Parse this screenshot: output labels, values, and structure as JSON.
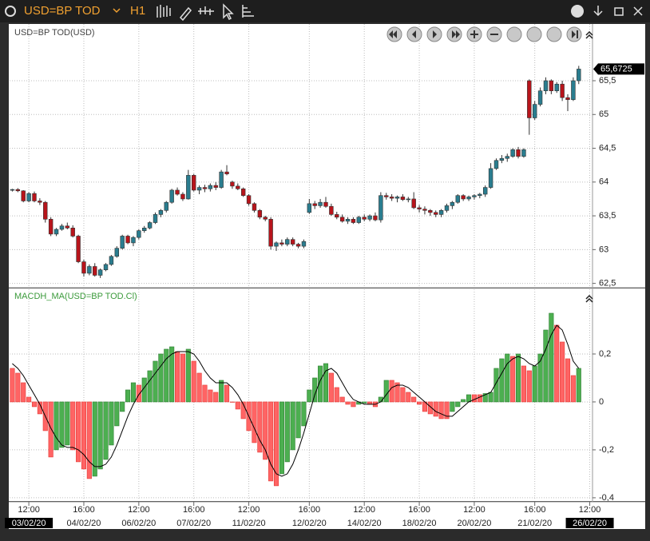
{
  "toolbar": {
    "symbol": "USD=BP TOD",
    "timeframe": "H1"
  },
  "chart_data": [
    {
      "type": "candlestick",
      "title": "USD=BP TOD(USD)",
      "ylim": [
        62.46,
        66.34
      ],
      "yticks": [
        {
          "value": 62.5,
          "label": "62,5"
        },
        63,
        {
          "value": 63.5,
          "label": "63,5"
        },
        64,
        {
          "value": 64.5,
          "label": "64,5"
        },
        65,
        {
          "value": 65.5,
          "label": "65,5"
        }
      ],
      "grid": true,
      "up_color": "#2a7d8f",
      "down_color": "#b8141b",
      "last_price": {
        "value": 65.6725,
        "label": "65,6725"
      },
      "ohlc": [
        [
          63.88,
          63.9,
          63.86,
          63.89
        ],
        [
          63.89,
          63.91,
          63.85,
          63.87
        ],
        [
          63.87,
          63.88,
          63.7,
          63.72
        ],
        [
          63.72,
          63.85,
          63.7,
          63.83
        ],
        [
          63.83,
          63.86,
          63.7,
          63.72
        ],
        [
          63.72,
          63.76,
          63.66,
          63.7
        ],
        [
          63.7,
          63.72,
          63.4,
          63.45
        ],
        [
          63.45,
          63.48,
          63.2,
          63.23
        ],
        [
          63.23,
          63.32,
          63.2,
          63.3
        ],
        [
          63.3,
          63.38,
          63.28,
          63.35
        ],
        [
          63.35,
          63.4,
          63.3,
          63.32
        ],
        [
          63.32,
          63.36,
          63.18,
          63.2
        ],
        [
          63.2,
          63.22,
          62.8,
          62.82
        ],
        [
          62.82,
          62.85,
          62.6,
          62.65
        ],
        [
          62.65,
          62.78,
          62.62,
          62.75
        ],
        [
          62.75,
          62.8,
          62.6,
          62.62
        ],
        [
          62.62,
          62.72,
          62.58,
          62.7
        ],
        [
          62.7,
          62.8,
          62.68,
          62.78
        ],
        [
          62.78,
          62.92,
          62.76,
          62.9
        ],
        [
          62.9,
          63.05,
          62.88,
          63.02
        ],
        [
          63.02,
          63.22,
          63.0,
          63.2
        ],
        [
          63.2,
          63.22,
          63.08,
          63.1
        ],
        [
          63.1,
          63.2,
          63.05,
          63.18
        ],
        [
          63.18,
          63.3,
          63.15,
          63.28
        ],
        [
          63.28,
          63.35,
          63.25,
          63.32
        ],
        [
          63.32,
          63.42,
          63.3,
          63.4
        ],
        [
          63.4,
          63.55,
          63.38,
          63.52
        ],
        [
          63.52,
          63.6,
          63.48,
          63.58
        ],
        [
          63.58,
          63.72,
          63.55,
          63.7
        ],
        [
          63.7,
          63.9,
          63.68,
          63.88
        ],
        [
          63.88,
          63.92,
          63.8,
          63.82
        ],
        [
          63.82,
          63.85,
          63.72,
          63.75
        ],
        [
          63.75,
          64.18,
          63.74,
          64.1
        ],
        [
          64.1,
          64.12,
          63.86,
          63.88
        ],
        [
          63.88,
          63.95,
          63.82,
          63.92
        ],
        [
          63.92,
          63.96,
          63.85,
          63.9
        ],
        [
          63.9,
          63.98,
          63.86,
          63.95
        ],
        [
          63.95,
          64.0,
          63.88,
          63.92
        ],
        [
          63.92,
          64.18,
          63.9,
          64.15
        ],
        [
          64.15,
          64.25,
          64.1,
          64.12
        ],
        [
          64.0,
          64.02,
          63.9,
          63.94
        ],
        [
          63.94,
          63.98,
          63.88,
          63.9
        ],
        [
          63.9,
          63.92,
          63.78,
          63.8
        ],
        [
          63.8,
          63.82,
          63.65,
          63.68
        ],
        [
          63.68,
          63.7,
          63.55,
          63.58
        ],
        [
          63.58,
          63.6,
          63.45,
          63.48
        ],
        [
          63.48,
          63.5,
          63.42,
          63.45
        ],
        [
          63.45,
          63.48,
          63.0,
          63.05
        ],
        [
          63.05,
          63.12,
          62.98,
          63.1
        ],
        [
          63.1,
          63.15,
          63.05,
          63.08
        ],
        [
          63.08,
          63.18,
          63.05,
          63.15
        ],
        [
          63.15,
          63.18,
          63.05,
          63.08
        ],
        [
          63.08,
          63.1,
          63.02,
          63.05
        ],
        [
          63.05,
          63.15,
          63.02,
          63.12
        ],
        [
          63.55,
          63.75,
          63.53,
          63.68
        ],
        [
          63.68,
          63.72,
          63.6,
          63.65
        ],
        [
          63.65,
          63.75,
          63.62,
          63.7
        ],
        [
          63.7,
          63.78,
          63.62,
          63.64
        ],
        [
          63.64,
          63.68,
          63.5,
          63.52
        ],
        [
          63.52,
          63.56,
          63.45,
          63.48
        ],
        [
          63.48,
          63.52,
          63.4,
          63.42
        ],
        [
          63.42,
          63.48,
          63.38,
          63.45
        ],
        [
          63.45,
          63.48,
          63.38,
          63.4
        ],
        [
          63.4,
          63.5,
          63.38,
          63.48
        ],
        [
          63.48,
          63.52,
          63.42,
          63.45
        ],
        [
          63.45,
          63.52,
          63.42,
          63.5
        ],
        [
          63.5,
          63.55,
          63.42,
          63.44
        ],
        [
          63.44,
          63.85,
          63.4,
          63.8
        ],
        [
          63.8,
          63.84,
          63.74,
          63.78
        ],
        [
          63.78,
          63.82,
          63.72,
          63.76
        ],
        [
          63.76,
          63.8,
          63.7,
          63.78
        ],
        [
          63.78,
          63.82,
          63.72,
          63.74
        ],
        [
          63.74,
          63.78,
          63.7,
          63.75
        ],
        [
          63.75,
          63.85,
          63.6,
          63.62
        ],
        [
          63.62,
          63.66,
          63.55,
          63.6
        ],
        [
          63.6,
          63.64,
          63.52,
          63.58
        ],
        [
          63.58,
          63.6,
          63.5,
          63.55
        ],
        [
          63.55,
          63.58,
          63.48,
          63.52
        ],
        [
          63.52,
          63.6,
          63.48,
          63.58
        ],
        [
          63.58,
          63.68,
          63.55,
          63.65
        ],
        [
          63.65,
          63.72,
          63.6,
          63.7
        ],
        [
          63.7,
          63.82,
          63.68,
          63.8
        ],
        [
          63.8,
          63.82,
          63.72,
          63.75
        ],
        [
          63.75,
          63.8,
          63.72,
          63.78
        ],
        [
          63.78,
          63.82,
          63.74,
          63.8
        ],
        [
          63.8,
          63.84,
          63.76,
          63.82
        ],
        [
          63.82,
          63.95,
          63.78,
          63.92
        ],
        [
          63.92,
          64.28,
          63.9,
          64.2
        ],
        [
          64.2,
          64.35,
          64.18,
          64.32
        ],
        [
          64.32,
          64.4,
          64.28,
          64.35
        ],
        [
          64.35,
          64.42,
          64.3,
          64.38
        ],
        [
          64.38,
          64.5,
          64.36,
          64.48
        ],
        [
          64.48,
          64.52,
          64.35,
          64.38
        ],
        [
          64.38,
          64.5,
          64.36,
          64.48
        ],
        [
          65.5,
          65.52,
          64.7,
          64.95
        ],
        [
          64.95,
          65.2,
          64.92,
          65.15
        ],
        [
          65.15,
          65.4,
          65.12,
          65.35
        ],
        [
          65.35,
          65.55,
          65.3,
          65.5
        ],
        [
          65.5,
          65.52,
          65.3,
          65.35
        ],
        [
          65.35,
          65.48,
          65.32,
          65.45
        ],
        [
          65.45,
          65.5,
          65.2,
          65.25
        ],
        [
          65.25,
          65.3,
          65.05,
          65.22
        ],
        [
          65.22,
          65.55,
          65.2,
          65.5
        ],
        [
          65.5,
          65.72,
          65.45,
          65.6725
        ],
        null,
        null
      ]
    },
    {
      "type": "histogram-signal",
      "title": "MACDH_MA(USD=BP TOD.Cl)",
      "ylim": [
        -0.407,
        0.47
      ],
      "yticks": [
        {
          "value": 0.2,
          "label": "0,2"
        },
        0,
        {
          "value": -0.2,
          "label": "-0,2"
        },
        {
          "value": -0.4,
          "label": "-0,4"
        }
      ],
      "grid": true,
      "up_color": "#4caf50",
      "down_color": "#ff6464",
      "signal_color": "#000000",
      "categories": [
        null,
        null,
        null,
        "12:00",
        null,
        null,
        null,
        null,
        null,
        null,
        null,
        null,
        null,
        "16:00",
        null,
        null,
        null,
        null,
        null,
        null,
        null,
        null,
        null,
        "12:00",
        null,
        null,
        null,
        null,
        null,
        null,
        null,
        null,
        null,
        "16:00",
        null,
        null,
        null,
        null,
        null,
        null,
        null,
        null,
        null,
        "12:00",
        null,
        null,
        null,
        null,
        null,
        null,
        null,
        null,
        null,
        null,
        "16:00",
        null,
        null,
        null,
        null,
        null,
        null,
        null,
        null,
        null,
        "12:00",
        null,
        null,
        null,
        null,
        null,
        null,
        null,
        null,
        null,
        "16:00",
        null,
        null,
        null,
        null,
        null,
        null,
        null,
        null,
        null,
        "12:00",
        null,
        null,
        null,
        null,
        null,
        null,
        null,
        null,
        null,
        null,
        "16:00",
        null,
        null,
        null,
        null,
        null,
        null,
        null,
        null,
        null,
        "12:00"
      ],
      "dates": [
        null,
        null,
        null,
        "03/02/20",
        null,
        null,
        null,
        null,
        null,
        null,
        null,
        null,
        null,
        "04/02/20",
        null,
        null,
        null,
        null,
        null,
        null,
        null,
        null,
        null,
        "06/02/20",
        null,
        null,
        null,
        null,
        null,
        null,
        null,
        null,
        null,
        "07/02/20",
        null,
        null,
        null,
        null,
        null,
        null,
        null,
        null,
        null,
        "11/02/20",
        null,
        null,
        null,
        null,
        null,
        null,
        null,
        null,
        null,
        null,
        "12/02/20",
        null,
        null,
        null,
        null,
        null,
        null,
        null,
        null,
        null,
        "14/02/20",
        null,
        null,
        null,
        null,
        null,
        null,
        null,
        null,
        null,
        "18/02/20",
        null,
        null,
        null,
        null,
        null,
        null,
        null,
        null,
        null,
        "20/02/20",
        null,
        null,
        null,
        null,
        null,
        null,
        null,
        null,
        null,
        null,
        "21/02/20",
        null,
        null,
        null,
        null,
        null,
        null,
        null,
        null,
        null,
        "26/02/20"
      ],
      "values": [
        0.14,
        0.12,
        0.08,
        0.02,
        -0.02,
        -0.05,
        -0.12,
        -0.23,
        -0.2,
        -0.19,
        -0.18,
        -0.2,
        -0.25,
        -0.28,
        -0.32,
        -0.31,
        -0.28,
        -0.24,
        -0.18,
        -0.1,
        -0.04,
        0.05,
        0.08,
        0.07,
        0.1,
        0.13,
        0.17,
        0.2,
        0.22,
        0.23,
        0.21,
        0.2,
        0.22,
        0.17,
        0.12,
        0.07,
        0.05,
        0.04,
        0.09,
        0.07,
        0.0,
        -0.03,
        -0.07,
        -0.12,
        -0.17,
        -0.21,
        -0.24,
        -0.33,
        -0.35,
        -0.3,
        -0.25,
        -0.2,
        -0.15,
        -0.1,
        0.05,
        0.1,
        0.15,
        0.16,
        0.12,
        0.06,
        0.02,
        -0.01,
        -0.02,
        -0.01,
        -0.005,
        -0.01,
        -0.02,
        0.02,
        0.09,
        0.09,
        0.08,
        0.06,
        0.04,
        0.02,
        -0.01,
        -0.04,
        -0.05,
        -0.06,
        -0.07,
        -0.07,
        -0.04,
        -0.02,
        0.01,
        0.03,
        0.03,
        0.03,
        0.035,
        0.04,
        0.14,
        0.18,
        0.2,
        0.19,
        0.2,
        0.15,
        0.13,
        0.15,
        0.2,
        0.3,
        0.37,
        0.32,
        0.25,
        0.18,
        0.11,
        0.14,
        null,
        null
      ],
      "signal": [
        0.16,
        0.14,
        0.11,
        0.07,
        0.03,
        -0.01,
        -0.06,
        -0.11,
        -0.15,
        -0.18,
        -0.19,
        -0.19,
        -0.2,
        -0.22,
        -0.25,
        -0.27,
        -0.27,
        -0.26,
        -0.23,
        -0.18,
        -0.12,
        -0.06,
        -0.01,
        0.03,
        0.06,
        0.09,
        0.12,
        0.15,
        0.18,
        0.2,
        0.21,
        0.21,
        0.21,
        0.2,
        0.17,
        0.13,
        0.1,
        0.08,
        0.08,
        0.08,
        0.06,
        0.03,
        -0.01,
        -0.06,
        -0.11,
        -0.16,
        -0.2,
        -0.26,
        -0.3,
        -0.31,
        -0.3,
        -0.26,
        -0.2,
        -0.13,
        -0.05,
        0.03,
        0.09,
        0.13,
        0.14,
        0.12,
        0.08,
        0.04,
        0.01,
        0.0,
        -0.01,
        -0.01,
        -0.01,
        0.0,
        0.03,
        0.06,
        0.07,
        0.07,
        0.06,
        0.04,
        0.02,
        0.0,
        -0.02,
        -0.04,
        -0.05,
        -0.06,
        -0.06,
        -0.04,
        -0.02,
        0.0,
        0.01,
        0.02,
        0.03,
        0.04,
        0.08,
        0.12,
        0.16,
        0.18,
        0.19,
        0.18,
        0.16,
        0.15,
        0.17,
        0.22,
        0.28,
        0.32,
        0.3,
        0.24,
        0.17,
        0.14,
        null,
        null
      ]
    }
  ]
}
